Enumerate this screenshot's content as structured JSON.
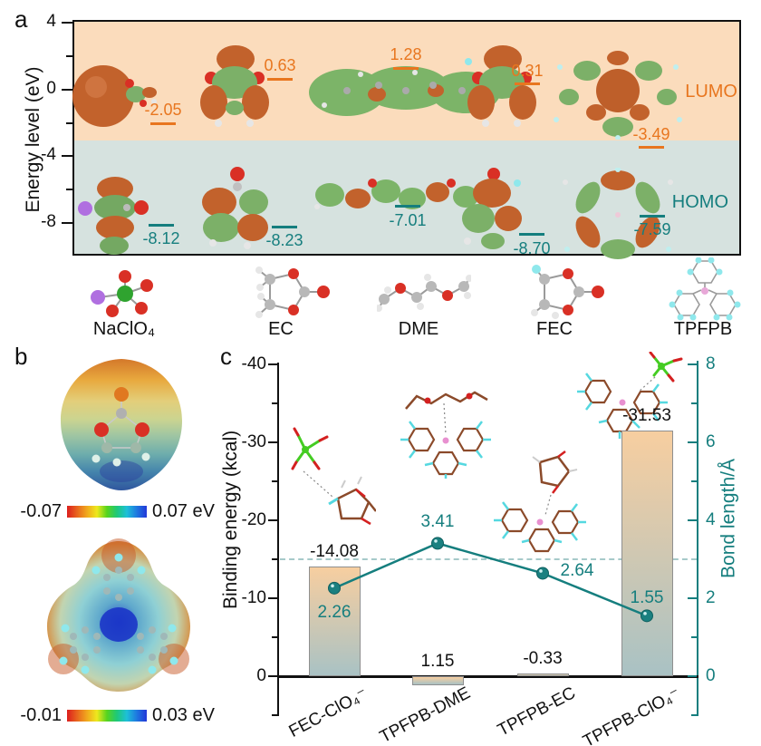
{
  "panels": {
    "a": "a",
    "b": "b",
    "c": "c"
  },
  "panel_a": {
    "y_axis_title": "Energy level (eV)",
    "y_ticks": [
      "4",
      "0",
      "-4",
      "-8"
    ],
    "lumo_label": "LUMO",
    "homo_label": "HOMO",
    "molecules": [
      {
        "name": "NaClO₄",
        "lumo": "-2.05",
        "homo": "-8.12"
      },
      {
        "name": "EC",
        "lumo": "0.63",
        "homo": "-8.23"
      },
      {
        "name": "DME",
        "lumo": "1.28",
        "homo": "-7.01"
      },
      {
        "name": "FEC",
        "lumo": "0.31",
        "homo": "-8.70"
      },
      {
        "name": "TPFPB",
        "lumo": "-3.49",
        "homo": "-7.59"
      }
    ],
    "colors": {
      "lumo_accent": "#E8761F",
      "homo_accent": "#157E7E",
      "lumo_region_bg": "#FBDCBC",
      "homo_region_bg": "#D6E2DF"
    }
  },
  "panel_b": {
    "scales": [
      {
        "molecule": "FEC ESP map",
        "min_label": "-0.07",
        "max_label": "0.07 eV"
      },
      {
        "molecule": "TPFPB ESP map",
        "min_label": "-0.01",
        "max_label": "0.03 eV"
      }
    ]
  },
  "chart_data": [
    {
      "type": "energy-level-diagram",
      "ylabel": "Energy level (eV)",
      "ylim": [
        -10,
        4
      ],
      "categories": [
        "NaClO₄",
        "EC",
        "DME",
        "FEC",
        "TPFPB"
      ],
      "series": [
        {
          "name": "LUMO",
          "unit": "eV",
          "values": [
            -2.05,
            0.63,
            1.28,
            0.31,
            -3.49
          ]
        },
        {
          "name": "HOMO",
          "unit": "eV",
          "values": [
            -8.12,
            -8.23,
            -7.01,
            -8.7,
            -7.59
          ]
        }
      ],
      "region_boundary_ev": -3,
      "legend": [
        "LUMO",
        "HOMO"
      ]
    },
    {
      "type": "bar+line",
      "categories": [
        "FEC-ClO₄⁻",
        "TPFPB-DME",
        "TPFPB-EC",
        "TPFPB-ClO₄⁻"
      ],
      "series": [
        {
          "name": "Binding energy",
          "type": "bar",
          "axis": "left",
          "unit": "kcal",
          "values": [
            -14.08,
            1.15,
            -0.33,
            -31.53
          ],
          "labels": [
            "-14.08",
            "1.15",
            "-0.33",
            "-31.53"
          ]
        },
        {
          "name": "Bond length",
          "type": "line",
          "axis": "right",
          "unit": "Å",
          "values": [
            2.26,
            3.41,
            2.64,
            1.55
          ],
          "labels": [
            "2.26",
            "3.41",
            "2.64",
            "1.55"
          ]
        }
      ],
      "left_axis": {
        "label": "Binding energy (kcal)",
        "ticks": [
          "-40",
          "-30",
          "-20",
          "-10",
          "0"
        ],
        "range": [
          -40,
          0
        ],
        "inverted": true
      },
      "right_axis": {
        "label": "Bond length/Å",
        "ticks": [
          "8",
          "6",
          "4",
          "2",
          "0"
        ],
        "range": [
          0,
          8
        ]
      },
      "reference_line_bond_length": 3,
      "grid": false
    }
  ]
}
